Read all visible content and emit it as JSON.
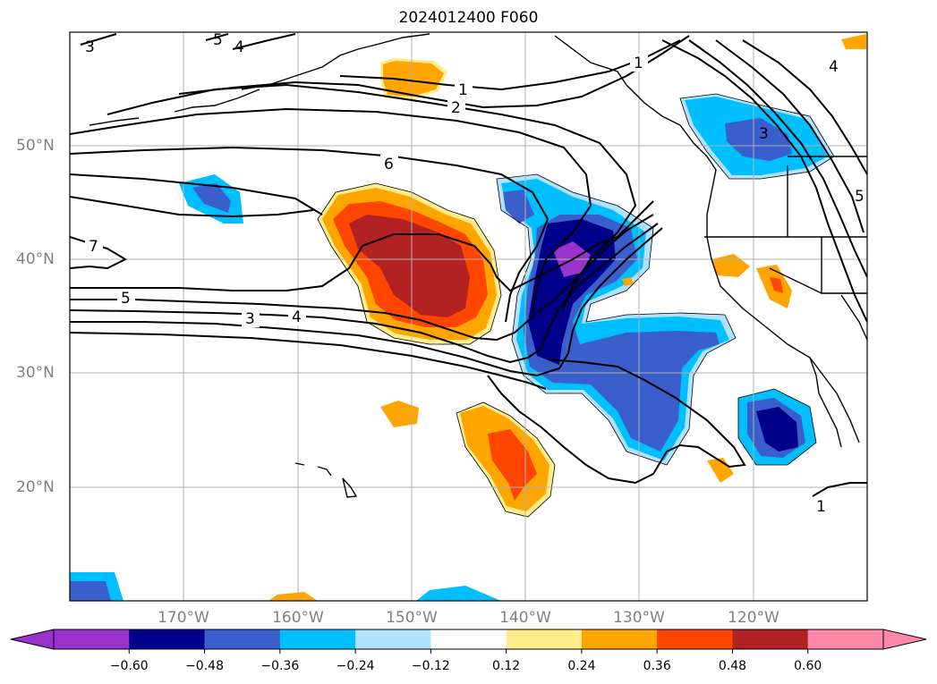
{
  "title": "2024012400 F060",
  "lat_labels": [
    "50°N",
    "40°N",
    "30°N",
    "20°N"
  ],
  "lon_labels": [
    "170°W",
    "160°W",
    "150°W",
    "140°W",
    "130°W",
    "120°W"
  ],
  "colorbar": {
    "ticks": [
      "−0.60",
      "−0.48",
      "−0.36",
      "−0.24",
      "−0.12",
      "0.12",
      "0.24",
      "0.36",
      "0.48",
      "0.60"
    ],
    "colors": [
      "#9933cc",
      "#00008b",
      "#3a5fcd",
      "#00bfff",
      "#b0e2ff",
      "#ffffff",
      "#ffec8b",
      "#ffa500",
      "#ff4500",
      "#b22222",
      "#ff88aa"
    ]
  },
  "contour_labels": [
    "1",
    "1",
    "2",
    "3",
    "4",
    "5",
    "6",
    "7",
    "3",
    "4",
    "5",
    "4",
    "3",
    "5",
    "1"
  ]
}
